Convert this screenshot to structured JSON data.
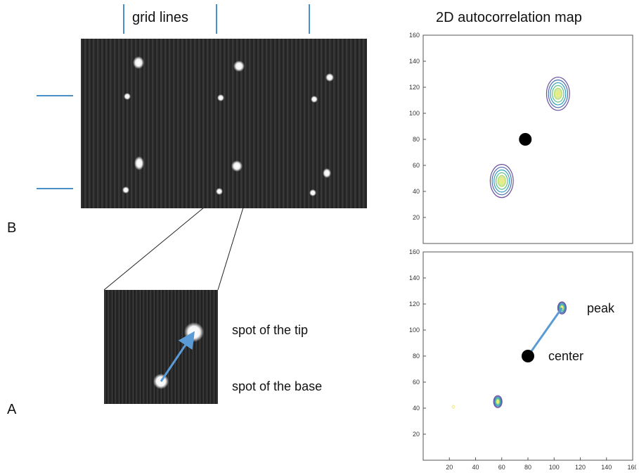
{
  "labels": {
    "grid_lines": "grid lines",
    "map_title": "2D autocorrelation map",
    "panel_b": "B",
    "panel_a": "A",
    "tip": "spot of the tip",
    "base": "spot of the base",
    "peak": "peak",
    "center": "center"
  },
  "colors": {
    "grid_marker": "#4a90c8",
    "arrow": "#5b9bd5",
    "contour_outer": "#6b4fa0",
    "contour_mid": "#2e9fbf",
    "contour_inner": "#f2ec7a",
    "center_dot": "#000000"
  },
  "chart_data": [
    {
      "type": "contour",
      "xlim": [
        0,
        160
      ],
      "ylim": [
        0,
        160
      ],
      "y_ticks": [
        20,
        40,
        60,
        80,
        100,
        120,
        140,
        160
      ],
      "x_ticks": [],
      "blobs": [
        {
          "x": 103,
          "y": 115,
          "radius": 11
        },
        {
          "x": 60,
          "y": 48,
          "radius": 11
        }
      ],
      "center": {
        "x": 78,
        "y": 80
      }
    },
    {
      "type": "contour",
      "xlim": [
        0,
        160
      ],
      "ylim": [
        0,
        160
      ],
      "y_ticks": [
        20,
        40,
        60,
        80,
        100,
        120,
        140,
        160
      ],
      "x_ticks": [
        20,
        40,
        60,
        80,
        100,
        120,
        140,
        160
      ],
      "blobs": [
        {
          "x": 106,
          "y": 117,
          "radius": 4
        },
        {
          "x": 57,
          "y": 45,
          "radius": 4
        },
        {
          "x": 23,
          "y": 41,
          "radius": 1
        }
      ],
      "center": {
        "x": 80,
        "y": 80
      },
      "peak": {
        "x": 106,
        "y": 117
      }
    }
  ]
}
